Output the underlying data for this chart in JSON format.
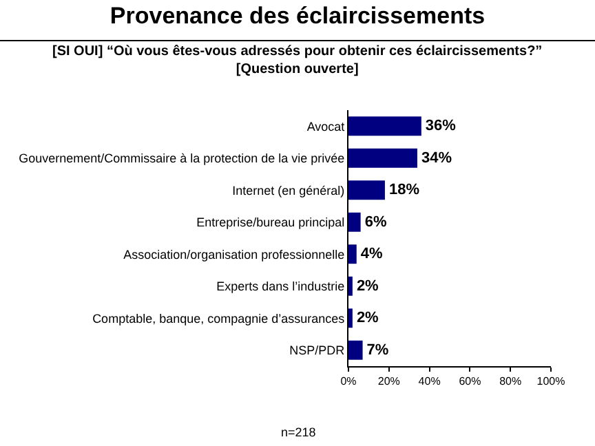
{
  "chart_data": {
    "type": "bar",
    "orientation": "horizontal",
    "title": "Provenance des éclaircissements",
    "subtitle": "[SI OUI] “Où vous êtes-vous adressés pour obtenir ces éclaircissements?” [Question ouverte]",
    "categories": [
      "Avocat",
      "Gouvernement/Commissaire à la protection de la vie privée",
      "Internet (en général)",
      "Entreprise/bureau principal",
      "Association/organisation professionnelle",
      "Experts dans l’industrie",
      "Comptable, banque, compagnie d’assurances",
      "NSP/PDR"
    ],
    "values": [
      36,
      34,
      18,
      6,
      4,
      2,
      2,
      7
    ],
    "value_labels": [
      "36%",
      "34%",
      "18%",
      "6%",
      "4%",
      "2%",
      "2%",
      "7%"
    ],
    "color": "#000080",
    "xlim": [
      0,
      100
    ],
    "xticks": [
      {
        "value": 0,
        "label": "0%"
      },
      {
        "value": 20,
        "label": "20%"
      },
      {
        "value": 40,
        "label": "40%"
      },
      {
        "value": 60,
        "label": "60%"
      },
      {
        "value": 80,
        "label": "80%"
      },
      {
        "value": 100,
        "label": "100%"
      }
    ],
    "grid": false,
    "legend": false,
    "annotations": [
      "n=218"
    ]
  }
}
